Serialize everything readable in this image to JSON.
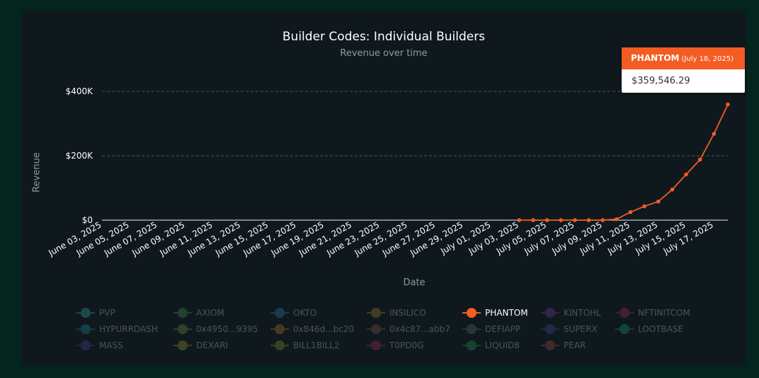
{
  "header": {
    "title": "Builder Codes: Individual Builders",
    "subtitle": "Revenue over time"
  },
  "axes": {
    "ylabel": "Revenue",
    "xlabel": "Date"
  },
  "tooltip": {
    "series": "PHANTOM",
    "date": "(July 18, 2025)",
    "value": "$359,546.29"
  },
  "colors": {
    "accent": "#f35c22",
    "card": "#0f191d",
    "page": "#04241d"
  },
  "legend": [
    {
      "label": "PVP",
      "color": "#3fa9a3",
      "active": false
    },
    {
      "label": "AXIOM",
      "color": "#4a9a55",
      "active": false
    },
    {
      "label": "OKTO",
      "color": "#2f7fc0",
      "active": false
    },
    {
      "label": "INSILICO",
      "color": "#b58a2a",
      "active": false
    },
    {
      "label": "PHANTOM",
      "color": "#f35c22",
      "active": true
    },
    {
      "label": "KINTOHL",
      "color": "#7b3fb0",
      "active": false
    },
    {
      "label": "NFTINITCOM",
      "color": "#b0304f",
      "active": false
    },
    {
      "label": "HYPURRDASH",
      "color": "#1f8fa0",
      "active": false
    },
    {
      "label": "0x4950...9395",
      "color": "#6f9a3f",
      "active": false
    },
    {
      "label": "0x846d...bc20",
      "color": "#c47a1f",
      "active": false
    },
    {
      "label": "0x4c87...abb7",
      "color": "#7a5a4a",
      "active": false
    },
    {
      "label": "DEFIAPP",
      "color": "#5c6f7a",
      "active": false
    },
    {
      "label": "SUPERX",
      "color": "#3f4fb0",
      "active": false
    },
    {
      "label": "LOOTBASE",
      "color": "#1f9a8f",
      "active": false
    },
    {
      "label": "MASS",
      "color": "#5a3fa0",
      "active": false
    },
    {
      "label": "DEXARI",
      "color": "#a59a2a",
      "active": false
    },
    {
      "label": "BILL1BILL2",
      "color": "#8a9a2a",
      "active": false
    },
    {
      "label": "T0PD0G",
      "color": "#b02f5a",
      "active": false
    },
    {
      "label": "LIQUID8",
      "color": "#1fa05a",
      "active": false
    },
    {
      "label": "PEAR",
      "color": "#b04a3f",
      "active": false
    }
  ],
  "chart_data": {
    "type": "line",
    "title": "Builder Codes: Individual Builders",
    "subtitle": "Revenue over time",
    "xlabel": "Date",
    "ylabel": "Revenue",
    "ylim": [
      0,
      420000
    ],
    "xlim": [
      "2025-06-03",
      "2025-07-18"
    ],
    "grid": true,
    "legend_position": "bottom",
    "y_ticks": [
      {
        "value": 0,
        "label": "$0"
      },
      {
        "value": 200000,
        "label": "$200K"
      },
      {
        "value": 400000,
        "label": "$400K"
      }
    ],
    "x_ticks": [
      {
        "date": "2025-06-03",
        "label": "June 03, 2025"
      },
      {
        "date": "2025-06-05",
        "label": "June 05, 2025"
      },
      {
        "date": "2025-06-07",
        "label": "June 07, 2025"
      },
      {
        "date": "2025-06-09",
        "label": "June 09, 2025"
      },
      {
        "date": "2025-06-11",
        "label": "June 11, 2025"
      },
      {
        "date": "2025-06-13",
        "label": "June 13, 2025"
      },
      {
        "date": "2025-06-15",
        "label": "June 15, 2025"
      },
      {
        "date": "2025-06-17",
        "label": "June 17, 2025"
      },
      {
        "date": "2025-06-19",
        "label": "June 19, 2025"
      },
      {
        "date": "2025-06-21",
        "label": "June 21, 2025"
      },
      {
        "date": "2025-06-23",
        "label": "June 23, 2025"
      },
      {
        "date": "2025-06-25",
        "label": "June 25, 2025"
      },
      {
        "date": "2025-06-27",
        "label": "June 27, 2025"
      },
      {
        "date": "2025-06-29",
        "label": "June 29, 2025"
      },
      {
        "date": "2025-07-01",
        "label": "July 01, 2025"
      },
      {
        "date": "2025-07-03",
        "label": "July 03, 2025"
      },
      {
        "date": "2025-07-05",
        "label": "July 05, 2025"
      },
      {
        "date": "2025-07-07",
        "label": "July 07, 2025"
      },
      {
        "date": "2025-07-09",
        "label": "July 09, 2025"
      },
      {
        "date": "2025-07-11",
        "label": "July 11, 2025"
      },
      {
        "date": "2025-07-13",
        "label": "July 13, 2025"
      },
      {
        "date": "2025-07-15",
        "label": "July 15, 2025"
      },
      {
        "date": "2025-07-17",
        "label": "July 17, 2025"
      }
    ],
    "series": [
      {
        "name": "PHANTOM",
        "color": "#f35c22",
        "points": [
          {
            "x": "2025-07-03",
            "y": 0
          },
          {
            "x": "2025-07-04",
            "y": 0
          },
          {
            "x": "2025-07-05",
            "y": 0
          },
          {
            "x": "2025-07-06",
            "y": 0
          },
          {
            "x": "2025-07-07",
            "y": 0
          },
          {
            "x": "2025-07-08",
            "y": 0
          },
          {
            "x": "2025-07-09",
            "y": 0
          },
          {
            "x": "2025-07-10",
            "y": 3000
          },
          {
            "x": "2025-07-11",
            "y": 25000
          },
          {
            "x": "2025-07-12",
            "y": 43000
          },
          {
            "x": "2025-07-13",
            "y": 58000
          },
          {
            "x": "2025-07-14",
            "y": 95000
          },
          {
            "x": "2025-07-15",
            "y": 142000
          },
          {
            "x": "2025-07-16",
            "y": 188000
          },
          {
            "x": "2025-07-17",
            "y": 268000
          },
          {
            "x": "2025-07-18",
            "y": 359546.29
          }
        ]
      }
    ]
  }
}
